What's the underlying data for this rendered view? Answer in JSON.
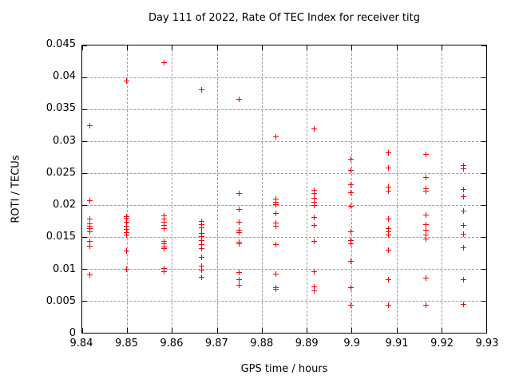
{
  "title": "Day 111 of 2022, Rate Of TEC Index for receiver titg",
  "colors": {
    "marker": "#ff0000",
    "grid": "#9a9a9a",
    "border": "#000000",
    "background": "#ffffff"
  },
  "chart_data": {
    "type": "scatter",
    "title": "Day 111 of 2022, Rate Of TEC Index for receiver titg",
    "xlabel": "GPS time / hours",
    "ylabel": "ROTI / TECUs",
    "xlim": [
      9.84,
      9.93
    ],
    "ylim": [
      0,
      0.045
    ],
    "xticks": [
      "9.84",
      "9.85",
      "9.86",
      "9.87",
      "9.88",
      "9.89",
      "9.9",
      "9.91",
      "9.92",
      "9.93"
    ],
    "xtick_values": [
      9.84,
      9.85,
      9.86,
      9.87,
      9.88,
      9.89,
      9.9,
      9.91,
      9.92,
      9.93
    ],
    "yticks": [
      "0",
      "0.005",
      "0.01",
      "0.015",
      "0.02",
      "0.025",
      "0.03",
      "0.035",
      "0.04",
      "0.045"
    ],
    "ytick_values": [
      0,
      0.005,
      0.01,
      0.015,
      0.02,
      0.025,
      0.03,
      0.035,
      0.04,
      0.045
    ],
    "grid": true,
    "legend_position": "none",
    "marker": "plus",
    "series": [
      {
        "name": "ROTI",
        "points": [
          [
            9.8417,
            0.0324
          ],
          [
            9.8417,
            0.0206
          ],
          [
            9.8417,
            0.0177
          ],
          [
            9.8417,
            0.017
          ],
          [
            9.8417,
            0.0166
          ],
          [
            9.8417,
            0.0162
          ],
          [
            9.8417,
            0.0158
          ],
          [
            9.8417,
            0.0142
          ],
          [
            9.8417,
            0.0135
          ],
          [
            9.8417,
            0.009
          ],
          [
            9.85,
            0.0394
          ],
          [
            9.85,
            0.0181
          ],
          [
            9.85,
            0.0179
          ],
          [
            9.85,
            0.0172
          ],
          [
            9.85,
            0.0166
          ],
          [
            9.85,
            0.0161
          ],
          [
            9.85,
            0.0156
          ],
          [
            9.85,
            0.0152
          ],
          [
            9.85,
            0.0128
          ],
          [
            9.85,
            0.0099
          ],
          [
            9.8583,
            0.0423
          ],
          [
            9.8583,
            0.0182
          ],
          [
            9.8583,
            0.0177
          ],
          [
            9.8583,
            0.0172
          ],
          [
            9.8583,
            0.0167
          ],
          [
            9.8583,
            0.0163
          ],
          [
            9.8583,
            0.0143
          ],
          [
            9.8583,
            0.0139
          ],
          [
            9.8583,
            0.0134
          ],
          [
            9.8583,
            0.0131
          ],
          [
            9.8583,
            0.01
          ],
          [
            9.8583,
            0.0095
          ],
          [
            9.8667,
            0.038
          ],
          [
            9.8667,
            0.0174
          ],
          [
            9.8667,
            0.0169
          ],
          [
            9.8667,
            0.0164
          ],
          [
            9.8667,
            0.0155
          ],
          [
            9.8667,
            0.015
          ],
          [
            9.8667,
            0.0144
          ],
          [
            9.8667,
            0.0138
          ],
          [
            9.8667,
            0.0131
          ],
          [
            9.8667,
            0.0118
          ],
          [
            9.8667,
            0.0104
          ],
          [
            9.8667,
            0.0098
          ],
          [
            9.8667,
            0.0086
          ],
          [
            9.875,
            0.0365
          ],
          [
            9.875,
            0.0217
          ],
          [
            9.875,
            0.0192
          ],
          [
            9.875,
            0.0173
          ],
          [
            9.875,
            0.016
          ],
          [
            9.875,
            0.0156
          ],
          [
            9.875,
            0.0141
          ],
          [
            9.875,
            0.0139
          ],
          [
            9.875,
            0.0094
          ],
          [
            9.875,
            0.0083
          ],
          [
            9.875,
            0.0074
          ],
          [
            9.8833,
            0.0306
          ],
          [
            9.8833,
            0.0209
          ],
          [
            9.8833,
            0.0204
          ],
          [
            9.8833,
            0.02
          ],
          [
            9.8833,
            0.0186
          ],
          [
            9.8833,
            0.0171
          ],
          [
            9.8833,
            0.0166
          ],
          [
            9.8833,
            0.0137
          ],
          [
            9.8833,
            0.0091
          ],
          [
            9.8833,
            0.007
          ],
          [
            9.8833,
            0.0068
          ],
          [
            9.8917,
            0.0319
          ],
          [
            9.8917,
            0.0222
          ],
          [
            9.8917,
            0.0217
          ],
          [
            9.8917,
            0.021
          ],
          [
            9.8917,
            0.0204
          ],
          [
            9.8917,
            0.0199
          ],
          [
            9.8917,
            0.018
          ],
          [
            9.8917,
            0.0168
          ],
          [
            9.8917,
            0.0142
          ],
          [
            9.8917,
            0.0095
          ],
          [
            9.8917,
            0.0071
          ],
          [
            9.8917,
            0.0065
          ],
          [
            9.9,
            0.0271
          ],
          [
            9.9,
            0.0254
          ],
          [
            9.9,
            0.0231
          ],
          [
            9.9,
            0.0219
          ],
          [
            9.9,
            0.0198
          ],
          [
            9.9,
            0.0157
          ],
          [
            9.9,
            0.0144
          ],
          [
            9.9,
            0.0139
          ],
          [
            9.9,
            0.0111
          ],
          [
            9.9,
            0.007
          ],
          [
            9.9,
            0.0042
          ],
          [
            9.9083,
            0.0281
          ],
          [
            9.9083,
            0.0258
          ],
          [
            9.9083,
            0.0227
          ],
          [
            9.9083,
            0.0221
          ],
          [
            9.9083,
            0.0178
          ],
          [
            9.9083,
            0.0162
          ],
          [
            9.9083,
            0.0157
          ],
          [
            9.9083,
            0.0152
          ],
          [
            9.9083,
            0.0129
          ],
          [
            9.9083,
            0.0083
          ],
          [
            9.9083,
            0.0043
          ],
          [
            9.9167,
            0.0279
          ],
          [
            9.9167,
            0.0243
          ],
          [
            9.9167,
            0.0225
          ],
          [
            9.9167,
            0.0221
          ],
          [
            9.9167,
            0.0184
          ],
          [
            9.9167,
            0.0169
          ],
          [
            9.9167,
            0.016
          ],
          [
            9.9167,
            0.0152
          ],
          [
            9.9167,
            0.0146
          ],
          [
            9.9167,
            0.0085
          ],
          [
            9.9167,
            0.0042
          ],
          [
            9.925,
            0.0261
          ],
          [
            9.925,
            0.0256
          ],
          [
            9.925,
            0.0224
          ],
          [
            9.925,
            0.0212
          ],
          [
            9.925,
            0.019
          ],
          [
            9.925,
            0.0167
          ],
          [
            9.925,
            0.0154
          ],
          [
            9.925,
            0.0132
          ],
          [
            9.925,
            0.0082
          ],
          [
            9.925,
            0.0044
          ]
        ]
      }
    ]
  }
}
